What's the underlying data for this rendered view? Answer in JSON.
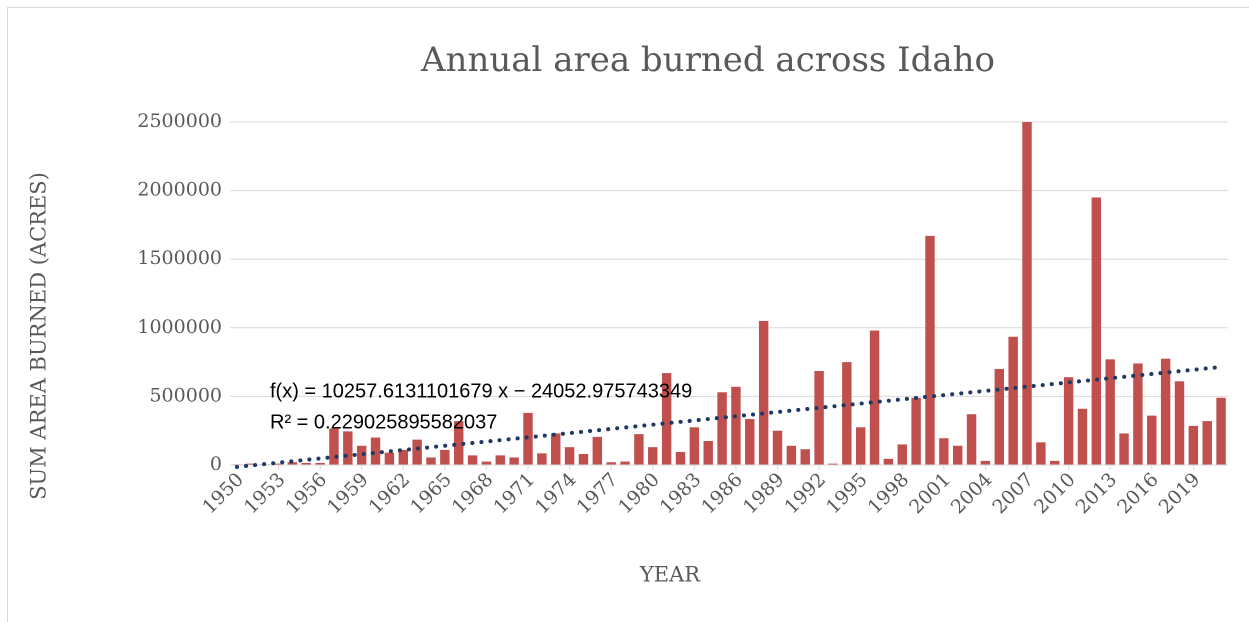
{
  "chart_data": {
    "type": "bar",
    "title": "Annual area burned across Idaho",
    "x_label": "YEAR",
    "y_label": "SUM AREA BURNED (ACRES)",
    "categories": [
      "1950",
      null,
      null,
      "1953",
      null,
      null,
      "1956",
      null,
      null,
      "1959",
      null,
      null,
      "1962",
      null,
      null,
      "1965",
      null,
      null,
      "1968",
      null,
      null,
      "1971",
      null,
      null,
      "1974",
      null,
      null,
      "1977",
      null,
      null,
      "1980",
      null,
      null,
      "1983",
      null,
      null,
      "1986",
      null,
      null,
      "1989",
      null,
      null,
      "1992",
      null,
      null,
      "1995",
      null,
      null,
      "1998",
      null,
      null,
      "2001",
      null,
      null,
      "2004",
      null,
      null,
      "2007",
      null,
      null,
      "2010",
      null,
      null,
      "2013",
      null,
      null,
      "2016",
      null,
      null,
      "2019",
      null,
      null
    ],
    "values": [
      5000,
      10000,
      5000,
      10000,
      20000,
      15000,
      15000,
      265000,
      245000,
      140000,
      200000,
      90000,
      110000,
      185000,
      55000,
      110000,
      320000,
      70000,
      25000,
      70000,
      55000,
      380000,
      85000,
      230000,
      130000,
      80000,
      205000,
      20000,
      25000,
      225000,
      130000,
      670000,
      95000,
      275000,
      175000,
      530000,
      570000,
      335000,
      1050000,
      250000,
      140000,
      115000,
      685000,
      10000,
      750000,
      275000,
      980000,
      45000,
      150000,
      490000,
      1670000,
      195000,
      140000,
      370000,
      30000,
      700000,
      935000,
      2500000,
      165000,
      30000,
      640000,
      410000,
      1950000,
      770000,
      230000,
      740000,
      360000,
      775000,
      610000,
      285000,
      320000,
      490000
    ],
    "color": "#c0504d",
    "ylim": [
      0,
      2500000
    ],
    "yticks": [
      0,
      500000,
      1000000,
      1500000,
      2000000,
      2500000
    ],
    "grid": true,
    "trendline": {
      "slope": 10257.6131101679,
      "intercept": -24052.975743349,
      "color": "#1f3864",
      "label": "f(x) = 10257.6131101679 x − 24052.975743349",
      "r2_label": "R² = 0.229025895582037"
    }
  }
}
